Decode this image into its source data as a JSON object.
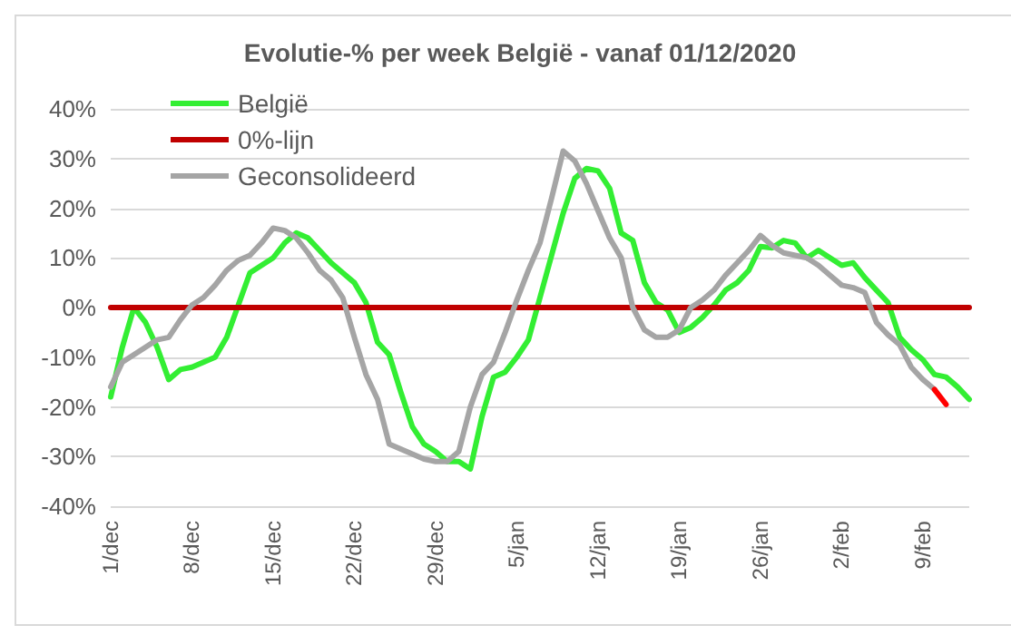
{
  "chart_data": {
    "type": "line",
    "title": "Evolutie-% per week België - vanaf 01/12/2020",
    "categories": [
      "1/dec",
      null,
      null,
      null,
      null,
      null,
      null,
      "8/dec",
      null,
      null,
      null,
      null,
      null,
      null,
      "15/dec",
      null,
      null,
      null,
      null,
      null,
      null,
      "22/dec",
      null,
      null,
      null,
      null,
      null,
      null,
      "29/dec",
      null,
      null,
      null,
      null,
      null,
      null,
      "5/jan",
      null,
      null,
      null,
      null,
      null,
      null,
      "12/jan",
      null,
      null,
      null,
      null,
      null,
      null,
      "19/jan",
      null,
      null,
      null,
      null,
      null,
      null,
      "26/jan",
      null,
      null,
      null,
      null,
      null,
      null,
      "2/feb",
      null,
      null,
      null,
      null,
      null,
      null,
      "9/feb",
      null,
      null,
      null,
      null
    ],
    "series": [
      {
        "name": "België",
        "color": "#33ee33",
        "values": [
          -18,
          -8,
          0,
          -3,
          -8,
          -14.5,
          -12.5,
          -12,
          -11,
          -10,
          -6,
          0.5,
          7,
          8.5,
          10,
          13,
          15,
          14,
          11.5,
          9,
          7,
          5,
          1,
          -7,
          -9.5,
          -17,
          -24,
          -27.5,
          -29,
          -31,
          -31,
          -32.5,
          -22,
          -14,
          -13,
          -10,
          -6.5,
          2,
          10.5,
          19,
          26,
          28,
          27.5,
          24,
          15,
          13.5,
          5,
          1,
          -0.5,
          -5,
          -4,
          -2,
          0.5,
          3.5,
          5,
          7.5,
          12.3,
          12,
          13.5,
          13,
          10,
          11.5,
          10,
          8.5,
          9,
          6,
          3.5,
          1,
          -6,
          -8.5,
          -10.5,
          -13.5,
          -14,
          -16,
          -18.5
        ]
      },
      {
        "name": "0%-lijn",
        "color": "#c00000",
        "values": [
          0,
          0,
          0,
          0,
          0,
          0,
          0,
          0,
          0,
          0,
          0,
          0,
          0,
          0,
          0,
          0,
          0,
          0,
          0,
          0,
          0,
          0,
          0,
          0,
          0,
          0,
          0,
          0,
          0,
          0,
          0,
          0,
          0,
          0,
          0,
          0,
          0,
          0,
          0,
          0,
          0,
          0,
          0,
          0,
          0,
          0,
          0,
          0,
          0,
          0,
          0,
          0,
          0,
          0,
          0,
          0,
          0,
          0,
          0,
          0,
          0,
          0,
          0,
          0,
          0,
          0,
          0,
          0,
          0,
          0,
          0,
          0,
          0,
          0,
          0
        ]
      },
      {
        "name": "Geconsolideerd",
        "color": "#a5a5a5",
        "values": [
          -16,
          -11,
          -9.5,
          -8,
          -6.5,
          -6,
          -2.5,
          0.5,
          2,
          4.5,
          7.5,
          9.5,
          10.5,
          13,
          16,
          15.5,
          14,
          11,
          7.5,
          5.5,
          2,
          -6,
          -13.5,
          -18.5,
          -27.5,
          -28.5,
          -29.5,
          -30.5,
          -31,
          -31,
          -29,
          -20,
          -13.5,
          -11,
          -5,
          1.5,
          7.5,
          13,
          22,
          31.5,
          29.5,
          25,
          19.5,
          14,
          10,
          0,
          -4.5,
          -6,
          -6,
          -4.5,
          0,
          1.5,
          3.5,
          6.5,
          9,
          11.5,
          14.5,
          12.5,
          11,
          10.5,
          10,
          8.5,
          6.5,
          4.5,
          4,
          3,
          -3,
          -5.5,
          -7.5,
          -12,
          -14.5,
          -16.5,
          null,
          null,
          null
        ]
      },
      {
        "color": "#ff0000",
        "values": [
          null,
          null,
          null,
          null,
          null,
          null,
          null,
          null,
          null,
          null,
          null,
          null,
          null,
          null,
          null,
          null,
          null,
          null,
          null,
          null,
          null,
          null,
          null,
          null,
          null,
          null,
          null,
          null,
          null,
          null,
          null,
          null,
          null,
          null,
          null,
          null,
          null,
          null,
          null,
          null,
          null,
          null,
          null,
          null,
          null,
          null,
          null,
          null,
          null,
          null,
          null,
          null,
          null,
          null,
          null,
          null,
          null,
          null,
          null,
          null,
          null,
          null,
          null,
          null,
          null,
          null,
          null,
          null,
          null,
          null,
          null,
          -16.5,
          -19.5,
          null,
          null
        ]
      }
    ],
    "ylim": [
      -40,
      40
    ],
    "yticks": [
      {
        "value": -40,
        "label": "-40%"
      },
      {
        "value": -30,
        "label": "-30%"
      },
      {
        "value": -20,
        "label": "-20%"
      },
      {
        "value": -10,
        "label": "-10%"
      },
      {
        "value": 0,
        "label": "0%"
      },
      {
        "value": 10,
        "label": "10%"
      },
      {
        "value": 20,
        "label": "20%"
      },
      {
        "value": 30,
        "label": "30%"
      },
      {
        "value": 40,
        "label": "40%"
      }
    ],
    "grid": "y",
    "legend": "top left",
    "marker": "none",
    "line_style": "solid"
  }
}
